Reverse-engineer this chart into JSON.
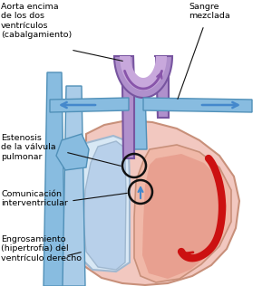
{
  "figsize": [
    3.0,
    3.16
  ],
  "dpi": 100,
  "bg_color": "#ffffff",
  "heart_fill": "#f2c8c0",
  "heart_edge": "#c8907a",
  "heart_lw": 1.2,
  "rv_fill": "#d8e8f5",
  "rv_edge": "#a0b8d0",
  "lv_fill": "#f0b8a8",
  "blue_vessel": "#88bce0",
  "blue_vessel_edge": "#5090b8",
  "blue_vessel_dark": "#6090c0",
  "purple_fill": "#b090cc",
  "purple_edge": "#7855a0",
  "purple_inner": "#c8a8dc",
  "red_blood": "#cc1111",
  "text_color": "#000000",
  "line_color": "#111111",
  "circle_color": "#111111",
  "arrow_blue": "#4488cc",
  "arrow_purple": "#8855aa",
  "label_aorta": "Aorta encima\nde los dos\nventrículos\n(cabalgamiento)",
  "label_sangre": "Sangre\nmezclada",
  "label_estenosis": "Estenosis\nde la válvula\npulmonar",
  "label_comunicacion": "Comunicación\ninterventricular",
  "label_engrosamiento": "Engrosamiento\n(hipertrofia) del\nventrículo derecho",
  "fontsize": 6.8
}
